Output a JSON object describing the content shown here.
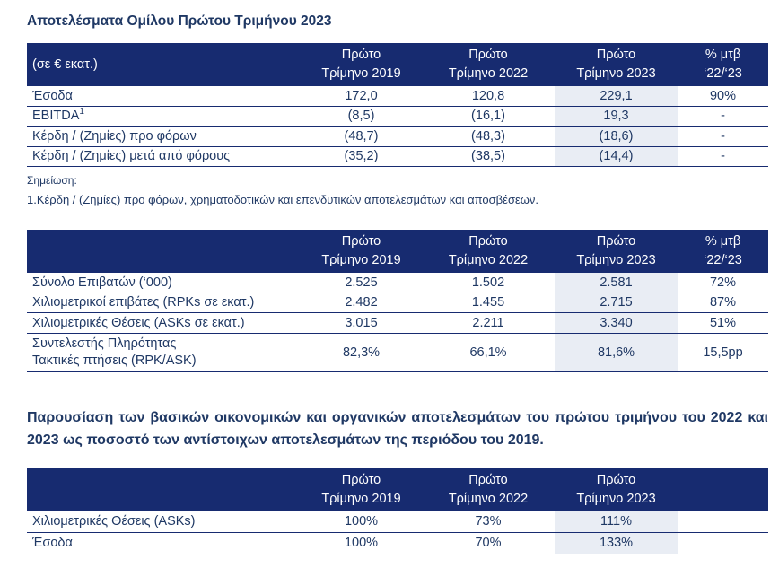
{
  "title": "Αποτελέσματα Ομίλου Πρώτου Τριμήνου 2023",
  "colors": {
    "header_bg": "#172b70",
    "body_text": "#1f3864",
    "highlight_2023": "#e9edf4",
    "row_border": "#172b70"
  },
  "table1": {
    "header": {
      "label": "(σε € εκατ.)",
      "c1a": "Πρώτο",
      "c1b": "Τρίμηνο 2019",
      "c2a": "Πρώτο",
      "c2b": "Τρίμηνο 2022",
      "c3a": "Πρώτο",
      "c3b": "Τρίμηνο 2023",
      "c4a": "% μτβ",
      "c4b": "‘22/‘23"
    },
    "rows": [
      {
        "label": "Έσοδα",
        "v2019": "172,0",
        "v2022": "120,8",
        "v2023": "229,1",
        "pct": "90%"
      },
      {
        "label": "EBITDA",
        "sup": "1",
        "v2019": "(8,5)",
        "v2022": "(16,1)",
        "v2023": "19,3",
        "pct": "-"
      },
      {
        "label": "Κέρδη / (Ζημίες) προ φόρων",
        "v2019": "(48,7)",
        "v2022": "(48,3)",
        "v2023": "(18,6)",
        "pct": "-"
      },
      {
        "label": "Κέρδη / (Ζημίες) μετά από φόρους",
        "v2019": "(35,2)",
        "v2022": "(38,5)",
        "v2023": "(14,4)",
        "pct": "-"
      }
    ]
  },
  "note": {
    "heading": "Σημείωση:",
    "text": "1.Κέρδη / (Ζημίες) προ φόρων, χρηματοδοτικών και επενδυτικών αποτελεσμάτων και αποσβέσεων."
  },
  "table2": {
    "header": {
      "label": "",
      "c1a": "Πρώτο",
      "c1b": "Τρίμηνο 2019",
      "c2a": "Πρώτο",
      "c2b": "Τρίμηνο 2022",
      "c3a": "Πρώτο",
      "c3b": "Τρίμηνο 2023",
      "c4a": "% μτβ",
      "c4b": "‘22/‘23"
    },
    "rows": [
      {
        "label": "Σύνολο Επιβατών (‘000)",
        "v2019": "2.525",
        "v2022": "1.502",
        "v2023": "2.581",
        "pct": "72%"
      },
      {
        "label": "Χιλιομετρικοί επιβάτες (RPKs σε εκατ.)",
        "v2019": "2.482",
        "v2022": "1.455",
        "v2023": "2.715",
        "pct": "87%"
      },
      {
        "label": "Χιλιομετρικές Θέσεις (ASKs σε εκατ.)",
        "v2019": "3.015",
        "v2022": "2.211",
        "v2023": "3.340",
        "pct": "51%"
      },
      {
        "label_line1": "Συντελεστής Πληρότητας",
        "label_line2": "Τακτικές πτήσεις (RPK/ASK)",
        "v2019": "82,3%",
        "v2022": "66,1%",
        "v2023": "81,6%",
        "pct": "15,5pp"
      }
    ]
  },
  "paragraph": "Παρουσίαση των βασικών οικονομικών και οργανικών αποτελεσμάτων του πρώτου τριμήνου του 2022 και 2023 ως ποσοστό των αντίστοιχων αποτελεσμάτων της περιόδου του 2019.",
  "table3": {
    "header": {
      "label": "",
      "c1a": "Πρώτο",
      "c1b": "Τρίμηνο 2019",
      "c2a": "Πρώτο",
      "c2b": "Τρίμηνο 2022",
      "c3a": "Πρώτο",
      "c3b": "Τρίμηνο 2023",
      "c4": ""
    },
    "rows": [
      {
        "label": "Χιλιομετρικές Θέσεις (ASKs)",
        "v2019": "100%",
        "v2022": "73%",
        "v2023": "111%"
      },
      {
        "label": "Έσοδα",
        "v2019": "100%",
        "v2022": "70%",
        "v2023": "133%"
      }
    ]
  }
}
